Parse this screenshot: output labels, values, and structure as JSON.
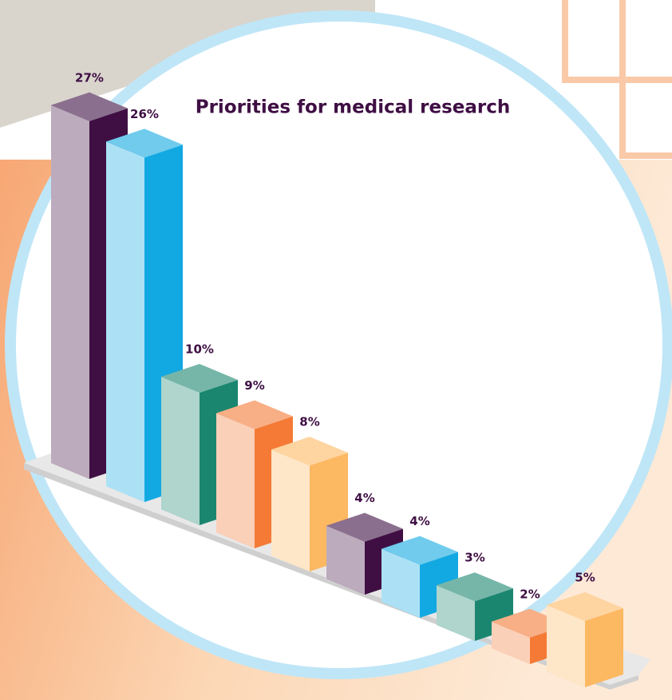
{
  "chart_data": {
    "type": "bar3d",
    "title": "Priorities for medical research",
    "values": [
      27,
      26,
      10,
      9,
      8,
      4,
      4,
      3,
      2,
      5
    ],
    "value_labels": [
      "27%",
      "26%",
      "10%",
      "9%",
      "8%",
      "4%",
      "4%",
      "3%",
      "2%",
      "5%"
    ],
    "colors": [
      "#3f0f44",
      "#12a9e2",
      "#1b8670",
      "#f47a36",
      "#fdb862",
      "#3f0f44",
      "#12a9e2",
      "#1b8670",
      "#f47a36",
      "#fdb862"
    ]
  }
}
